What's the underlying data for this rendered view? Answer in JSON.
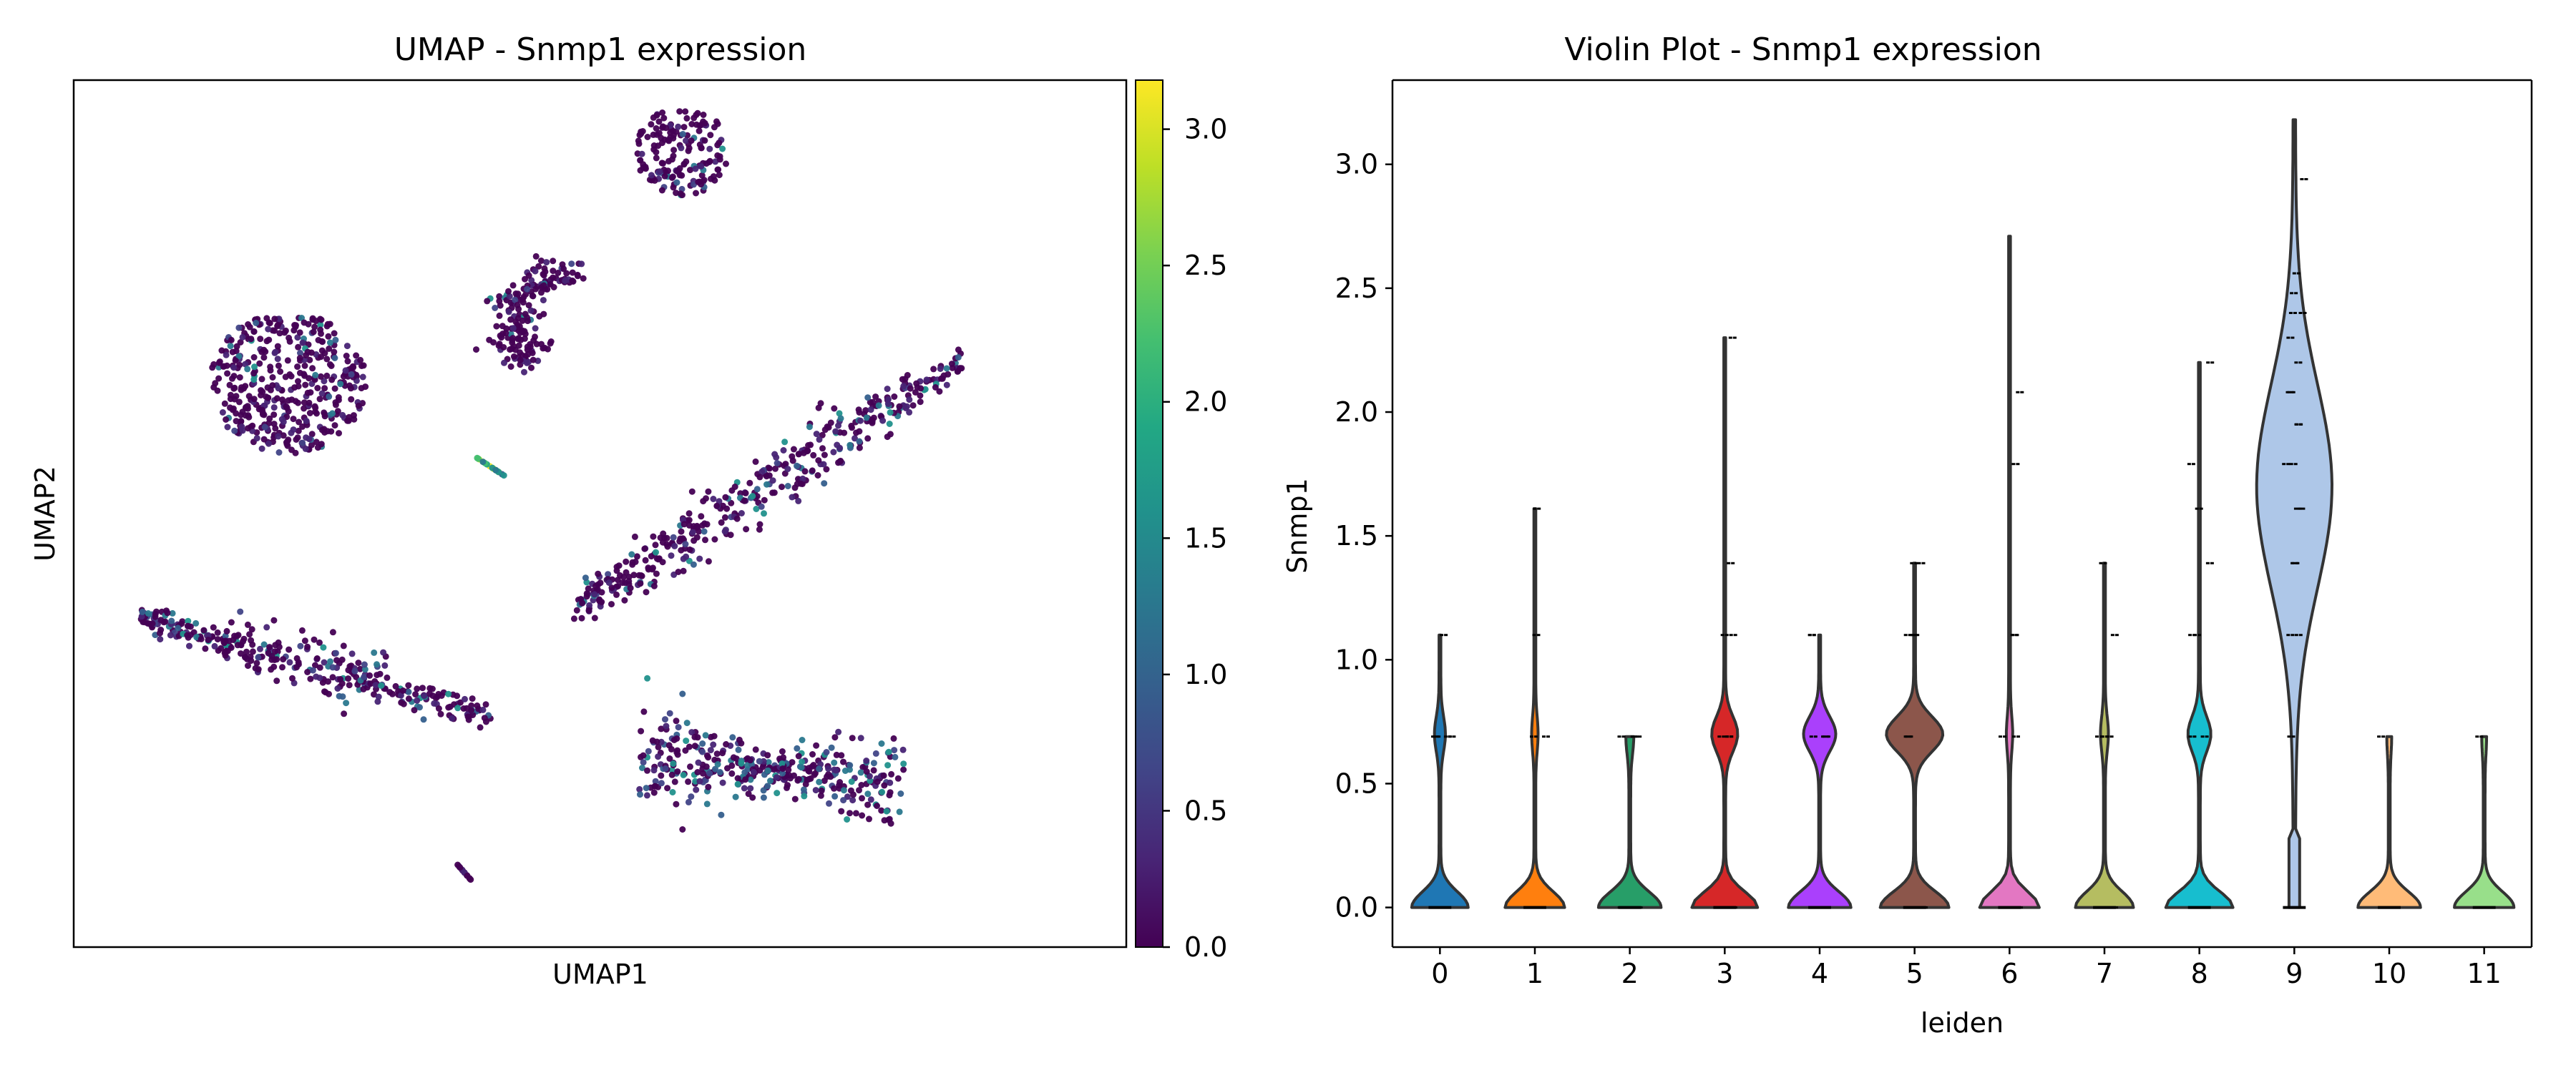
{
  "chart_data": [
    {
      "type": "scatter",
      "title": "UMAP - Snmp1 expression",
      "xlabel": "UMAP1",
      "ylabel": "UMAP2",
      "colorbar": {
        "colormap": "viridis",
        "range": [
          0.0,
          3.18
        ],
        "ticks": [
          0.0,
          0.5,
          1.0,
          1.5,
          2.0,
          2.5,
          3.0
        ],
        "tick_labels": [
          "0.0",
          "0.5",
          "1.0",
          "1.5",
          "2.0",
          "2.5",
          "3.0"
        ]
      },
      "clusters": [
        {
          "desc": "round blob upper-left",
          "points": 420,
          "shape": "ellipse",
          "cx": -6.5,
          "cy": 4.2,
          "rx": 2.0,
          "ry": 1.6,
          "high_frac": 0.05
        },
        {
          "desc": "elongated band lower-left",
          "points": 360,
          "shape": "band",
          "cx": -5.8,
          "cy": -2.2,
          "rx": 4.5,
          "ry": 0.55,
          "high_frac": 0.18
        },
        {
          "desc": "crescent center-top",
          "points": 190,
          "shape": "crescent",
          "cx": 0.8,
          "cy": 6.1,
          "rx": 1.6,
          "ry": 1.3,
          "high_frac": 0.06
        },
        {
          "desc": "small blob top",
          "points": 170,
          "shape": "ellipse",
          "cx": 3.6,
          "cy": 9.4,
          "rx": 1.2,
          "ry": 1.0,
          "high_frac": 0.05
        },
        {
          "desc": "long band right",
          "points": 420,
          "shape": "band",
          "cx": 5.8,
          "cy": 1.9,
          "rx": 5.0,
          "ry": 0.75,
          "high_frac": 0.15
        },
        {
          "desc": "bowtie lower-right",
          "points": 380,
          "shape": "bowtie",
          "cx": 5.9,
          "cy": -4.5,
          "rx": 3.4,
          "ry": 1.2,
          "high_frac": 0.3
        },
        {
          "desc": "tiny streak center",
          "points": 18,
          "shape": "streak",
          "cx": -1.3,
          "cy": 2.3,
          "rx": 0.35,
          "ry": 0.2,
          "high_frac": 1.0
        },
        {
          "desc": "tiny streak bottom",
          "points": 12,
          "shape": "streak",
          "cx": -2.0,
          "cy": -6.8,
          "rx": 0.25,
          "ry": 0.25,
          "high_frac": 0.0
        }
      ],
      "xlim": [
        -12.0,
        15.0
      ],
      "ylim": [
        -8.5,
        11.0
      ]
    },
    {
      "type": "violin",
      "title": "Violin Plot - Snmp1 expression",
      "xlabel": "leiden",
      "ylabel": "Snmp1",
      "ylim": [
        -0.16,
        3.34
      ],
      "yticks": [
        0.0,
        0.5,
        1.0,
        1.5,
        2.0,
        2.5,
        3.0
      ],
      "ytick_labels": [
        "0.0",
        "0.5",
        "1.0",
        "1.5",
        "2.0",
        "2.5",
        "3.0"
      ],
      "categories": [
        "0",
        "1",
        "2",
        "3",
        "4",
        "5",
        "6",
        "7",
        "8",
        "9",
        "10",
        "11"
      ],
      "colors": [
        "#1f77b4",
        "#ff7f0e",
        "#279e68",
        "#d62728",
        "#aa40fc",
        "#8c564b",
        "#e377c2",
        "#b5bd61",
        "#17becf",
        "#aec7e8",
        "#ffbb78",
        "#98df8a"
      ],
      "violins": [
        {
          "max": 1.1,
          "main": 0.05,
          "base_w": 0.36,
          "mid": 0.7,
          "mid_w": 0.06,
          "jitter": [
            0.69,
            0.69,
            0.69,
            0.69,
            1.1,
            0.0,
            0.0,
            0.0
          ]
        },
        {
          "max": 1.61,
          "main": 0.05,
          "base_w": 0.38,
          "mid": 0.7,
          "mid_w": 0.03,
          "jitter": [
            0.69,
            0.69,
            1.1,
            1.61,
            0.0,
            0.0,
            0.0
          ]
        },
        {
          "max": 0.69,
          "main": 0.05,
          "base_w": 0.4,
          "mid": 0.69,
          "mid_w": 0.04,
          "jitter": [
            0.69,
            0.69,
            0.69,
            0.0,
            0.0,
            0.0
          ]
        },
        {
          "max": 2.3,
          "main": 0.06,
          "base_w": 0.42,
          "mid": 0.7,
          "mid_w": 0.16,
          "jitter": [
            0.69,
            0.69,
            0.69,
            1.1,
            1.1,
            1.39,
            2.3,
            0.0,
            0.0
          ]
        },
        {
          "max": 1.1,
          "main": 0.06,
          "base_w": 0.4,
          "mid": 0.7,
          "mid_w": 0.2,
          "jitter": [
            0.69,
            0.69,
            0.69,
            1.1,
            1.1,
            0.0,
            0.0,
            0.0
          ]
        },
        {
          "max": 1.39,
          "main": 0.08,
          "base_w": 0.44,
          "mid": 0.7,
          "mid_w": 0.36,
          "jitter": [
            0.69,
            0.69,
            1.1,
            1.1,
            1.1,
            1.39,
            1.39,
            0.0,
            0.0
          ]
        },
        {
          "max": 2.71,
          "main": 0.05,
          "base_w": 0.38,
          "mid": 0.7,
          "mid_w": 0.03,
          "jitter": [
            0.69,
            0.69,
            1.1,
            1.1,
            1.79,
            2.08,
            0.0,
            0.0
          ]
        },
        {
          "max": 1.39,
          "main": 0.05,
          "base_w": 0.37,
          "mid": 0.7,
          "mid_w": 0.04,
          "jitter": [
            0.69,
            0.69,
            0.69,
            1.1,
            1.39,
            0.0,
            0.0
          ]
        },
        {
          "max": 2.2,
          "main": 0.08,
          "base_w": 0.43,
          "mid": 0.7,
          "mid_w": 0.14,
          "jitter": [
            0.69,
            0.69,
            1.1,
            1.1,
            1.39,
            1.61,
            1.79,
            2.2,
            0.0,
            0.0
          ]
        },
        {
          "max": 3.18,
          "main": 1.7,
          "base_w": 0.2,
          "mid": 1.7,
          "mid_w": 0.48,
          "jitter": [
            0.69,
            1.1,
            1.1,
            1.39,
            1.39,
            1.61,
            1.61,
            1.79,
            1.79,
            1.95,
            1.95,
            2.08,
            2.08,
            2.2,
            2.3,
            2.4,
            2.4,
            2.48,
            2.56,
            2.94,
            0.0
          ]
        },
        {
          "max": 0.69,
          "main": 0.05,
          "base_w": 0.4,
          "mid": 0.69,
          "mid_w": 0.02,
          "jitter": [
            0.69,
            0.0,
            0.0
          ]
        },
        {
          "max": 0.69,
          "main": 0.05,
          "base_w": 0.38,
          "mid": 0.69,
          "mid_w": 0.02,
          "jitter": [
            0.69,
            0.0,
            0.0
          ]
        }
      ]
    }
  ]
}
